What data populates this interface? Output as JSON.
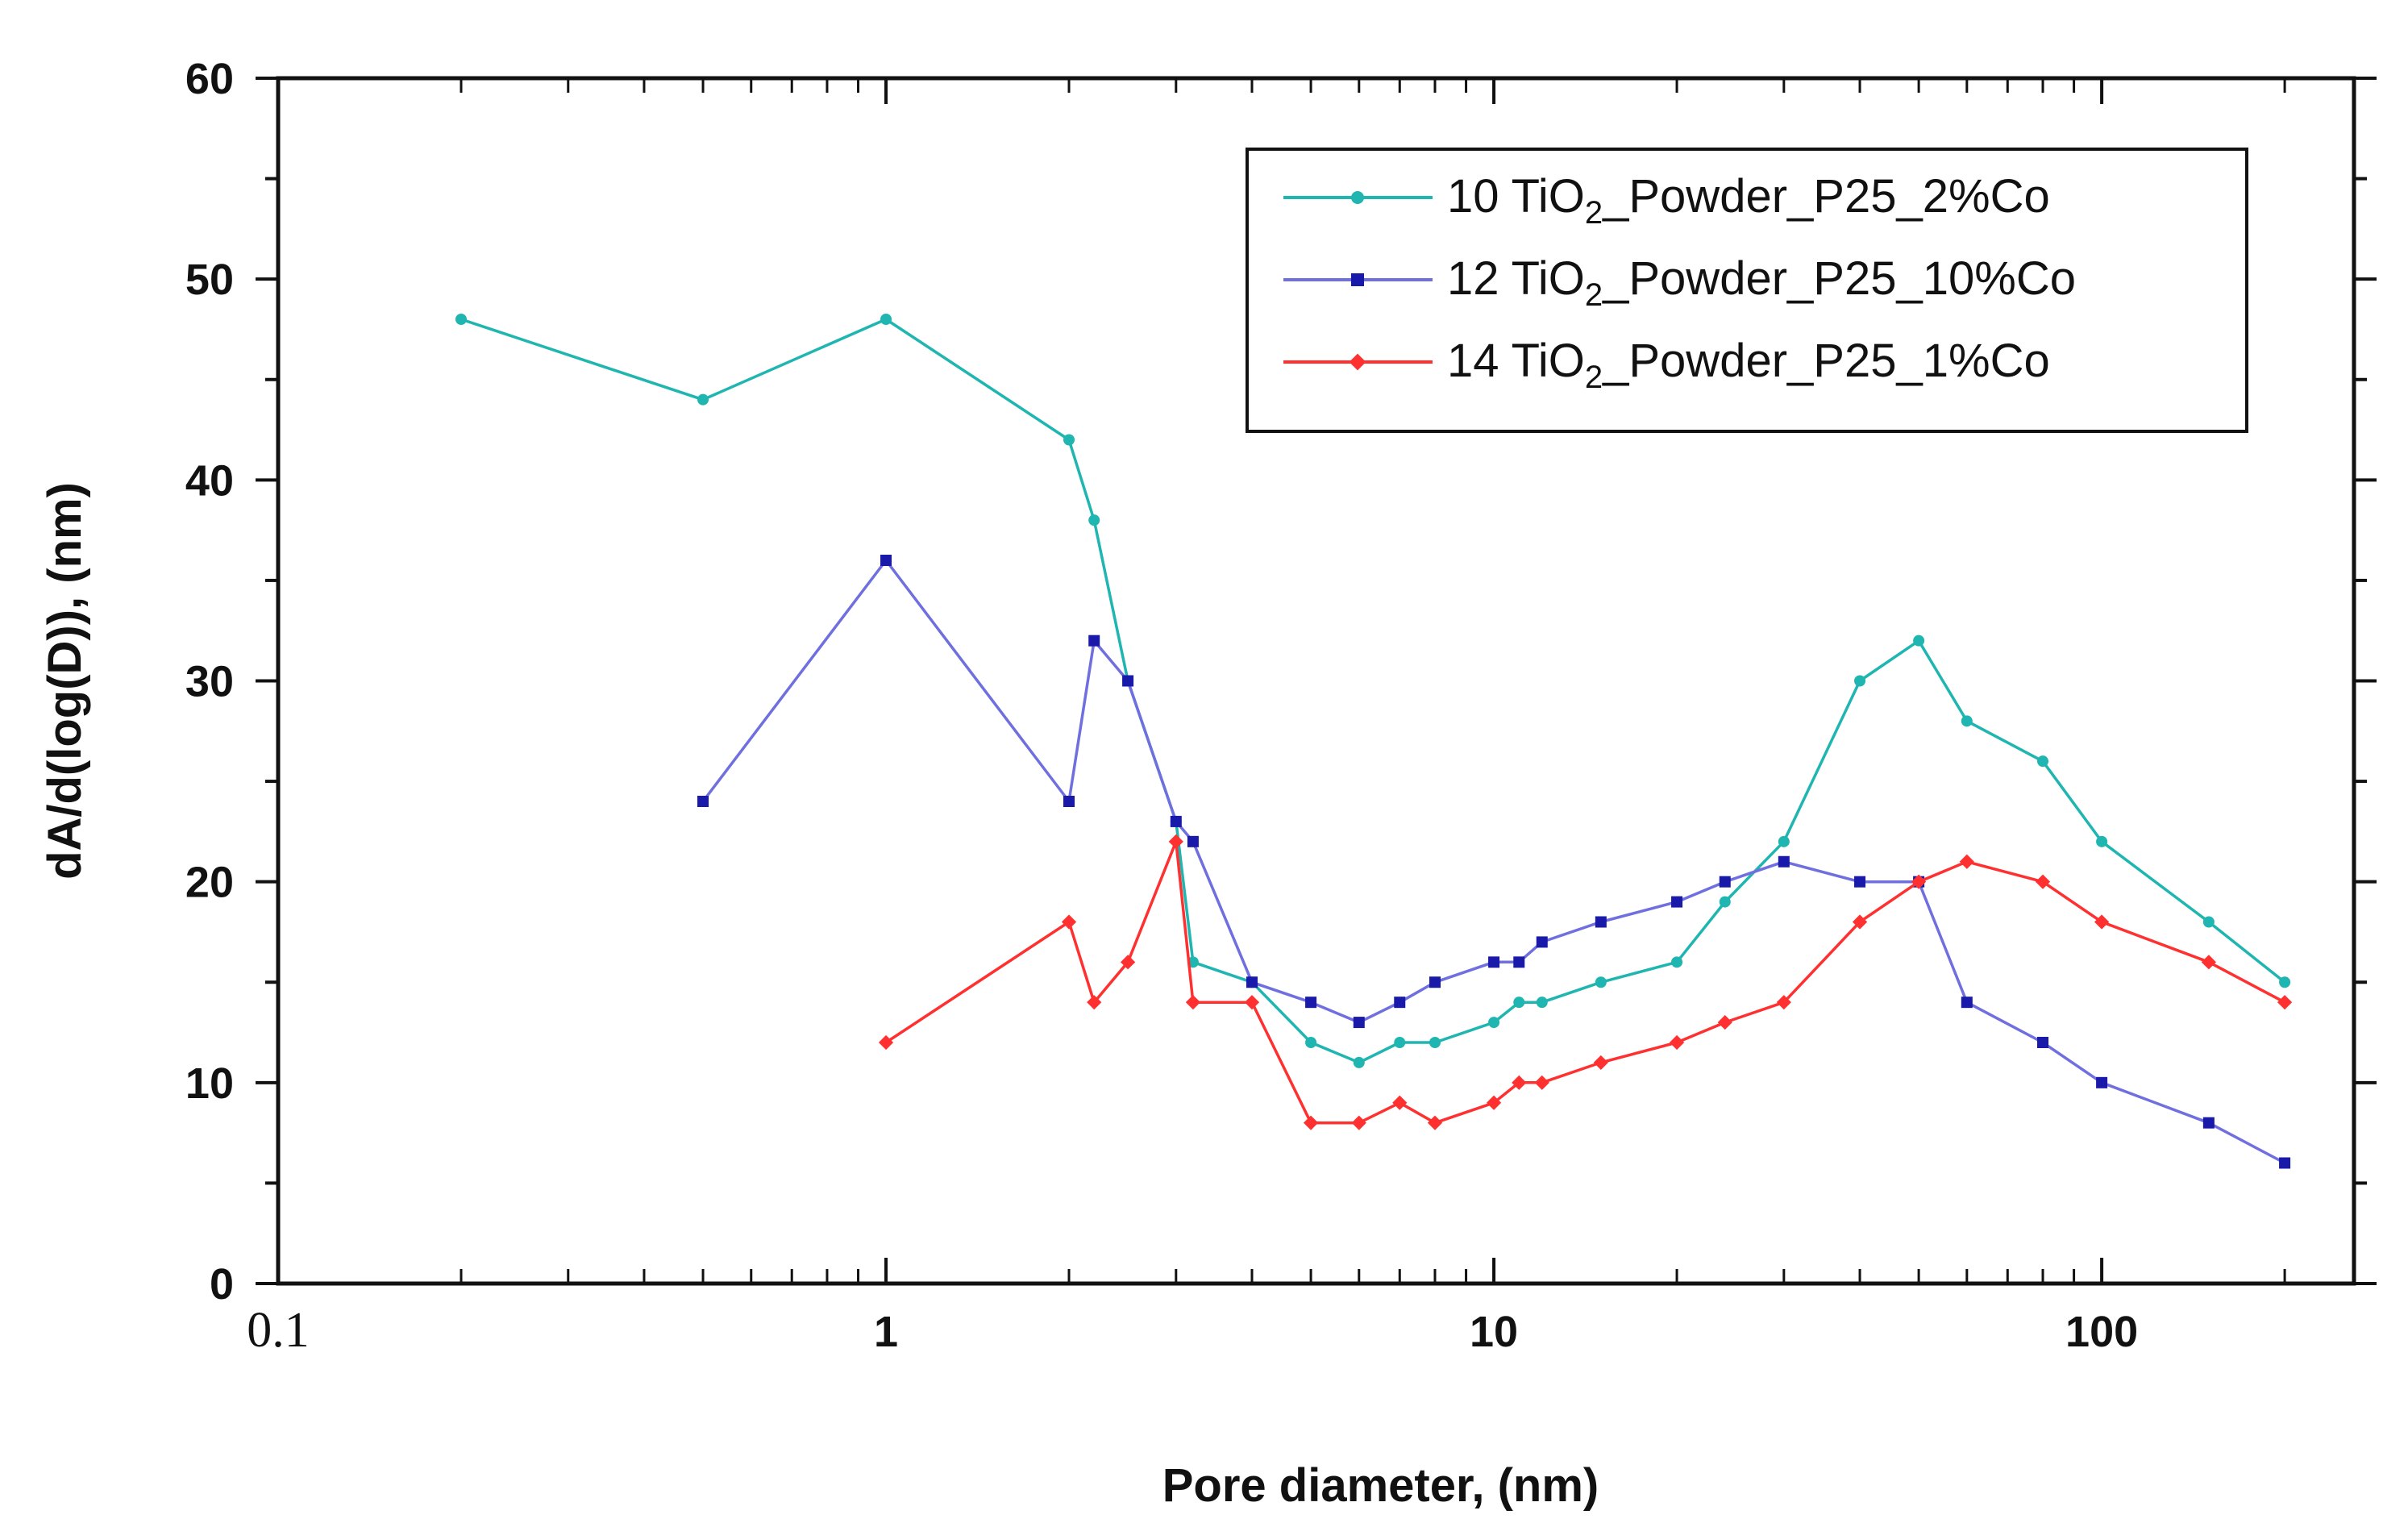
{
  "chart_data": {
    "type": "line",
    "x_scale": "log",
    "xlabel": "Pore diameter, (nm)",
    "ylabel": "dA/d(log(D)), (nm)",
    "xlim": [
      0.1,
      260
    ],
    "ylim": [
      0,
      60
    ],
    "x_ticks": [
      {
        "value": 0.1,
        "label": "0.1"
      },
      {
        "value": 1,
        "label": "1"
      },
      {
        "value": 10,
        "label": "10"
      },
      {
        "value": 100,
        "label": "100"
      }
    ],
    "y_ticks": [
      {
        "value": 0,
        "label": "0"
      },
      {
        "value": 10,
        "label": "10"
      },
      {
        "value": 20,
        "label": "20"
      },
      {
        "value": 30,
        "label": "30"
      },
      {
        "value": 40,
        "label": "40"
      },
      {
        "value": 50,
        "label": "50"
      },
      {
        "value": 60,
        "label": "60"
      }
    ],
    "legend_position": "top-right",
    "series": [
      {
        "name_prefix": "10 TiO",
        "name_sub": "2",
        "name_suffix": "_Powder_P25_2%Co",
        "color": "#1fb5b0",
        "marker": "circle",
        "x": [
          0.2,
          0.5,
          1,
          2,
          2.2,
          2.5,
          3,
          3.2,
          4,
          5,
          6,
          7,
          8,
          10,
          11,
          12,
          15,
          20,
          24,
          30,
          40,
          50,
          60,
          80,
          100,
          150,
          200
        ],
        "y": [
          48,
          44,
          48,
          42,
          38,
          30,
          23,
          16,
          15,
          12,
          11,
          12,
          12,
          13,
          14,
          14,
          15,
          16,
          19,
          22,
          30,
          32,
          28,
          26,
          22,
          18,
          15
        ]
      },
      {
        "name_prefix": "12 TiO",
        "name_sub": "2",
        "name_suffix": "_Powder_P25_10%Co",
        "color": "#1a1aaa",
        "line_color": "#6f6fe0",
        "marker": "square",
        "x": [
          0.5,
          1,
          2,
          2.2,
          2.5,
          3,
          3.2,
          4,
          5,
          6,
          7,
          8,
          10,
          11,
          12,
          15,
          20,
          24,
          30,
          40,
          50,
          60,
          80,
          100,
          150,
          200
        ],
        "y": [
          24,
          36,
          24,
          32,
          30,
          23,
          22,
          15,
          14,
          13,
          14,
          15,
          16,
          16,
          17,
          18,
          19,
          20,
          21,
          20,
          20,
          14,
          12,
          10,
          8,
          6
        ]
      },
      {
        "name_prefix": "14 TiO",
        "name_sub": "2",
        "name_suffix": "_Powder_P25_1%Co",
        "color": "#ff3030",
        "marker": "diamond",
        "x": [
          1,
          2,
          2.2,
          2.5,
          3,
          3.2,
          4,
          5,
          6,
          7,
          8,
          10,
          11,
          12,
          15,
          20,
          24,
          30,
          40,
          50,
          60,
          80,
          100,
          150,
          200
        ],
        "y": [
          12,
          18,
          14,
          16,
          22,
          14,
          14,
          8,
          8,
          9,
          8,
          9,
          10,
          10,
          11,
          12,
          13,
          14,
          18,
          20,
          21,
          20,
          18,
          16,
          14
        ]
      }
    ]
  }
}
